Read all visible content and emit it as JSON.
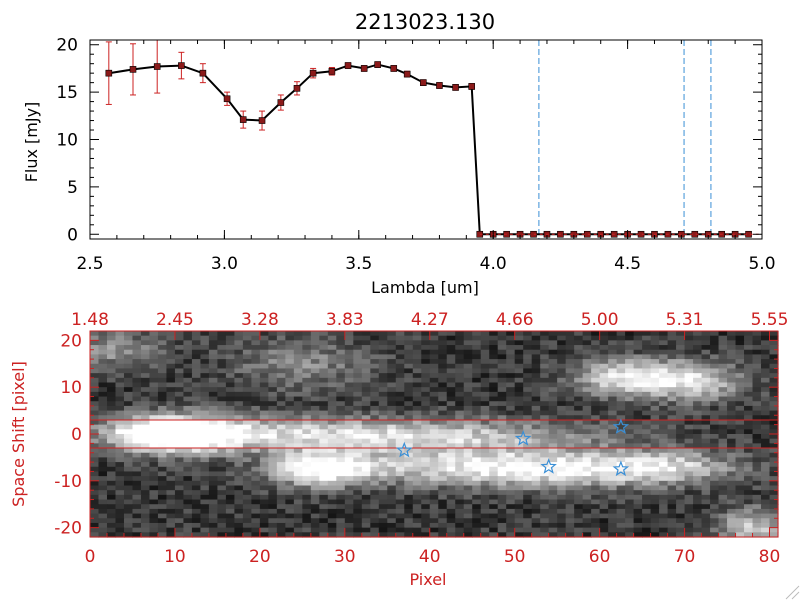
{
  "chart_data": [
    {
      "type": "line",
      "title": "2213023.130",
      "xlabel": "Lambda [um]",
      "ylabel": "Flux [mJy]",
      "xlim": [
        2.5,
        5.0
      ],
      "ylim": [
        -0.5,
        20.5
      ],
      "x_ticks": [
        "2.5",
        "3.0",
        "3.5",
        "4.0",
        "4.5",
        "5.0"
      ],
      "y_ticks": [
        "0",
        "5",
        "10",
        "15",
        "20"
      ],
      "series": [
        {
          "name": "flux",
          "x": [
            2.57,
            2.66,
            2.75,
            2.84,
            2.92,
            3.01,
            3.07,
            3.14,
            3.21,
            3.27,
            3.33,
            3.4,
            3.46,
            3.52,
            3.57,
            3.63,
            3.68,
            3.74,
            3.8,
            3.86,
            3.92,
            3.95,
            4.0,
            4.05,
            4.1,
            4.15,
            4.2,
            4.25,
            4.3,
            4.35,
            4.4,
            4.45,
            4.5,
            4.55,
            4.6,
            4.65,
            4.7,
            4.75,
            4.8,
            4.85,
            4.9,
            4.95
          ],
          "y": [
            17.0,
            17.4,
            17.7,
            17.8,
            17.0,
            14.3,
            12.1,
            12.0,
            13.9,
            15.4,
            17.0,
            17.2,
            17.8,
            17.5,
            17.9,
            17.5,
            16.9,
            16.0,
            15.7,
            15.5,
            15.6,
            0,
            0,
            0,
            0,
            0,
            0,
            0,
            0,
            0,
            0,
            0,
            0,
            0,
            0,
            0,
            0,
            0,
            0,
            0,
            0,
            0
          ],
          "yerr": [
            3.3,
            2.7,
            2.8,
            1.4,
            1.0,
            0.7,
            0.9,
            1.0,
            0.8,
            0.7,
            0.5,
            0.4,
            0.3,
            0.3,
            0.3,
            0.3,
            0.3,
            0.3,
            0.3,
            0.3,
            0.3,
            0,
            0,
            0,
            0,
            0,
            0,
            0,
            0,
            0,
            0,
            0,
            0,
            0,
            0,
            0,
            0,
            0,
            0,
            0,
            0,
            0
          ]
        }
      ],
      "vlines": [
        4.17,
        4.71,
        4.81
      ],
      "colors": {
        "line": "#000000",
        "marker": "#8b1a1a",
        "errorbar": "#cc2222",
        "vline": "#3a8fd6"
      }
    },
    {
      "type": "heatmap",
      "xlabel": "Pixel",
      "ylabel": "Space Shift [pixel]",
      "xlim": [
        0,
        81
      ],
      "ylim": [
        -22,
        22
      ],
      "x_ticks": [
        "0",
        "10",
        "20",
        "30",
        "40",
        "50",
        "60",
        "70",
        "80"
      ],
      "y_ticks": [
        "-20",
        "-10",
        "0",
        "10",
        "20"
      ],
      "top_ticks": [
        "1.48",
        "2.45",
        "3.28",
        "3.83",
        "4.27",
        "4.66",
        "5.00",
        "5.31",
        "5.55"
      ],
      "hlines": [
        3,
        -3
      ],
      "stars": [
        {
          "x": 37,
          "y": -3.5
        },
        {
          "x": 51,
          "y": -1.0
        },
        {
          "x": 54,
          "y": -7.0
        },
        {
          "x": 62.5,
          "y": 1.5
        },
        {
          "x": 62.5,
          "y": -7.5
        }
      ],
      "colors": {
        "axis": "#cc2222",
        "star": "#3a8fd6",
        "hline": "#cc2222"
      }
    }
  ]
}
